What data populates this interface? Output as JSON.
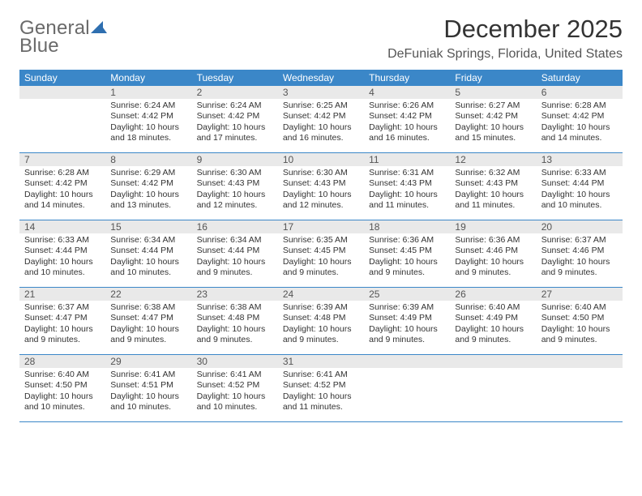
{
  "logo": {
    "line1": "General",
    "line2": "Blue"
  },
  "header": {
    "month_title": "December 2025",
    "location": "DeFuniak Springs, Florida, United States"
  },
  "colors": {
    "header_bg": "#3b87c8",
    "header_text": "#ffffff",
    "daynum_bg": "#e9e9e9",
    "border": "#3b87c8",
    "logo_text": "#6a6a6a",
    "logo_accent": "#2f6fb0"
  },
  "weekdays": [
    "Sunday",
    "Monday",
    "Tuesday",
    "Wednesday",
    "Thursday",
    "Friday",
    "Saturday"
  ],
  "weeks": [
    [
      {
        "n": "",
        "sr": "",
        "ss": "",
        "dl": ""
      },
      {
        "n": "1",
        "sr": "Sunrise: 6:24 AM",
        "ss": "Sunset: 4:42 PM",
        "dl": "Daylight: 10 hours and 18 minutes."
      },
      {
        "n": "2",
        "sr": "Sunrise: 6:24 AM",
        "ss": "Sunset: 4:42 PM",
        "dl": "Daylight: 10 hours and 17 minutes."
      },
      {
        "n": "3",
        "sr": "Sunrise: 6:25 AM",
        "ss": "Sunset: 4:42 PM",
        "dl": "Daylight: 10 hours and 16 minutes."
      },
      {
        "n": "4",
        "sr": "Sunrise: 6:26 AM",
        "ss": "Sunset: 4:42 PM",
        "dl": "Daylight: 10 hours and 16 minutes."
      },
      {
        "n": "5",
        "sr": "Sunrise: 6:27 AM",
        "ss": "Sunset: 4:42 PM",
        "dl": "Daylight: 10 hours and 15 minutes."
      },
      {
        "n": "6",
        "sr": "Sunrise: 6:28 AM",
        "ss": "Sunset: 4:42 PM",
        "dl": "Daylight: 10 hours and 14 minutes."
      }
    ],
    [
      {
        "n": "7",
        "sr": "Sunrise: 6:28 AM",
        "ss": "Sunset: 4:42 PM",
        "dl": "Daylight: 10 hours and 14 minutes."
      },
      {
        "n": "8",
        "sr": "Sunrise: 6:29 AM",
        "ss": "Sunset: 4:42 PM",
        "dl": "Daylight: 10 hours and 13 minutes."
      },
      {
        "n": "9",
        "sr": "Sunrise: 6:30 AM",
        "ss": "Sunset: 4:43 PM",
        "dl": "Daylight: 10 hours and 12 minutes."
      },
      {
        "n": "10",
        "sr": "Sunrise: 6:30 AM",
        "ss": "Sunset: 4:43 PM",
        "dl": "Daylight: 10 hours and 12 minutes."
      },
      {
        "n": "11",
        "sr": "Sunrise: 6:31 AM",
        "ss": "Sunset: 4:43 PM",
        "dl": "Daylight: 10 hours and 11 minutes."
      },
      {
        "n": "12",
        "sr": "Sunrise: 6:32 AM",
        "ss": "Sunset: 4:43 PM",
        "dl": "Daylight: 10 hours and 11 minutes."
      },
      {
        "n": "13",
        "sr": "Sunrise: 6:33 AM",
        "ss": "Sunset: 4:44 PM",
        "dl": "Daylight: 10 hours and 10 minutes."
      }
    ],
    [
      {
        "n": "14",
        "sr": "Sunrise: 6:33 AM",
        "ss": "Sunset: 4:44 PM",
        "dl": "Daylight: 10 hours and 10 minutes."
      },
      {
        "n": "15",
        "sr": "Sunrise: 6:34 AM",
        "ss": "Sunset: 4:44 PM",
        "dl": "Daylight: 10 hours and 10 minutes."
      },
      {
        "n": "16",
        "sr": "Sunrise: 6:34 AM",
        "ss": "Sunset: 4:44 PM",
        "dl": "Daylight: 10 hours and 9 minutes."
      },
      {
        "n": "17",
        "sr": "Sunrise: 6:35 AM",
        "ss": "Sunset: 4:45 PM",
        "dl": "Daylight: 10 hours and 9 minutes."
      },
      {
        "n": "18",
        "sr": "Sunrise: 6:36 AM",
        "ss": "Sunset: 4:45 PM",
        "dl": "Daylight: 10 hours and 9 minutes."
      },
      {
        "n": "19",
        "sr": "Sunrise: 6:36 AM",
        "ss": "Sunset: 4:46 PM",
        "dl": "Daylight: 10 hours and 9 minutes."
      },
      {
        "n": "20",
        "sr": "Sunrise: 6:37 AM",
        "ss": "Sunset: 4:46 PM",
        "dl": "Daylight: 10 hours and 9 minutes."
      }
    ],
    [
      {
        "n": "21",
        "sr": "Sunrise: 6:37 AM",
        "ss": "Sunset: 4:47 PM",
        "dl": "Daylight: 10 hours and 9 minutes."
      },
      {
        "n": "22",
        "sr": "Sunrise: 6:38 AM",
        "ss": "Sunset: 4:47 PM",
        "dl": "Daylight: 10 hours and 9 minutes."
      },
      {
        "n": "23",
        "sr": "Sunrise: 6:38 AM",
        "ss": "Sunset: 4:48 PM",
        "dl": "Daylight: 10 hours and 9 minutes."
      },
      {
        "n": "24",
        "sr": "Sunrise: 6:39 AM",
        "ss": "Sunset: 4:48 PM",
        "dl": "Daylight: 10 hours and 9 minutes."
      },
      {
        "n": "25",
        "sr": "Sunrise: 6:39 AM",
        "ss": "Sunset: 4:49 PM",
        "dl": "Daylight: 10 hours and 9 minutes."
      },
      {
        "n": "26",
        "sr": "Sunrise: 6:40 AM",
        "ss": "Sunset: 4:49 PM",
        "dl": "Daylight: 10 hours and 9 minutes."
      },
      {
        "n": "27",
        "sr": "Sunrise: 6:40 AM",
        "ss": "Sunset: 4:50 PM",
        "dl": "Daylight: 10 hours and 9 minutes."
      }
    ],
    [
      {
        "n": "28",
        "sr": "Sunrise: 6:40 AM",
        "ss": "Sunset: 4:50 PM",
        "dl": "Daylight: 10 hours and 10 minutes."
      },
      {
        "n": "29",
        "sr": "Sunrise: 6:41 AM",
        "ss": "Sunset: 4:51 PM",
        "dl": "Daylight: 10 hours and 10 minutes."
      },
      {
        "n": "30",
        "sr": "Sunrise: 6:41 AM",
        "ss": "Sunset: 4:52 PM",
        "dl": "Daylight: 10 hours and 10 minutes."
      },
      {
        "n": "31",
        "sr": "Sunrise: 6:41 AM",
        "ss": "Sunset: 4:52 PM",
        "dl": "Daylight: 10 hours and 11 minutes."
      },
      {
        "n": "",
        "sr": "",
        "ss": "",
        "dl": ""
      },
      {
        "n": "",
        "sr": "",
        "ss": "",
        "dl": ""
      },
      {
        "n": "",
        "sr": "",
        "ss": "",
        "dl": ""
      }
    ]
  ]
}
